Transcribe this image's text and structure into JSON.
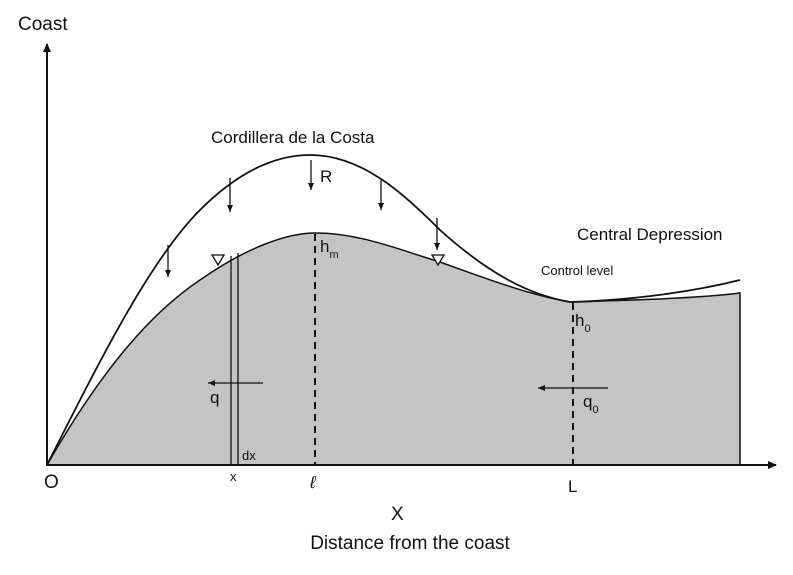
{
  "labels": {
    "y_axis": "Coast",
    "mountain": "Cordillera de la Costa",
    "recharge": "R",
    "valley": "Central Depression",
    "control_level": "Control level",
    "h_m": {
      "base": "h",
      "sub": "m"
    },
    "h_0": {
      "base": "h",
      "sub": "0"
    },
    "q": "q",
    "q_0": {
      "base": "q",
      "sub": "0"
    },
    "dx": "dx",
    "x": "x",
    "ell": "ℓ",
    "origin": "O",
    "L": "L",
    "x_axis": "X",
    "x_axis_title": "Distance from the coast"
  }
}
